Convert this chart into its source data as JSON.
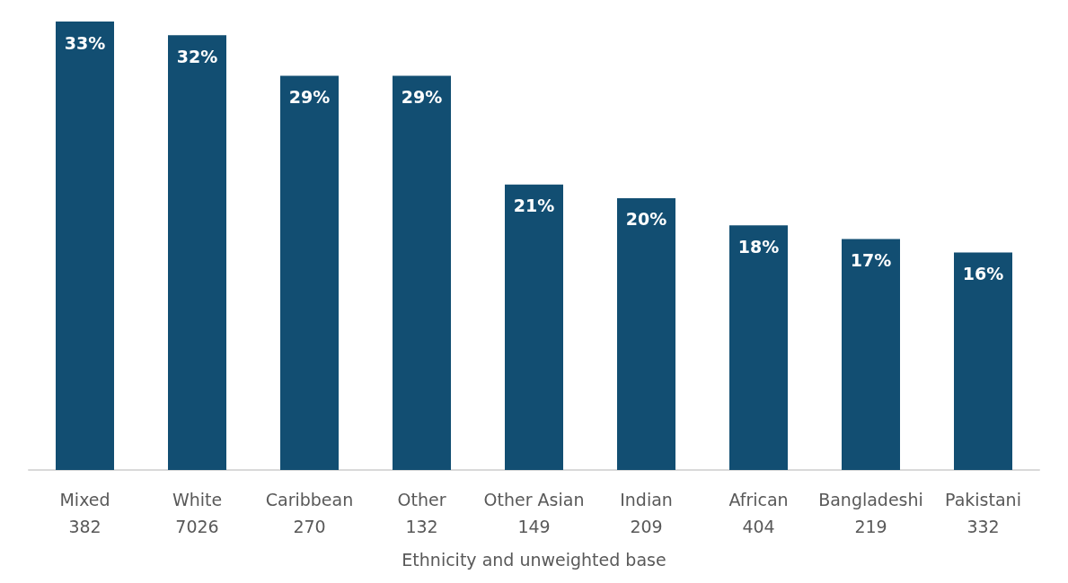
{
  "chart_data": {
    "type": "bar",
    "xlabel": "Ethnicity and unweighted base",
    "categories": [
      "Mixed\n382",
      "White\n7026",
      "Caribbean\n270",
      "Other\n132",
      "Other Asian\n149",
      "Indian\n209",
      "African\n404",
      "Bangladeshi\n219",
      "Pakistani\n332"
    ],
    "values": [
      33,
      32,
      29,
      29,
      21,
      20,
      18,
      17,
      16
    ],
    "value_labels": [
      "33%",
      "32%",
      "29%",
      "29%",
      "21%",
      "20%",
      "18%",
      "17%",
      "16%"
    ],
    "color": "#124e72"
  }
}
